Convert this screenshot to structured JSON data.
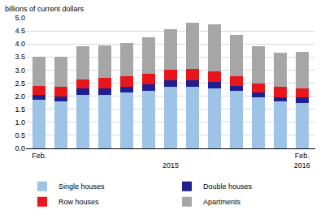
{
  "chart_data": {
    "type": "bar",
    "stacked": true,
    "grid": true,
    "legend": "bottom",
    "ylabel": "billions of current dollars",
    "categories": [
      "Feb.",
      null,
      null,
      null,
      null,
      null,
      "\n2015",
      null,
      null,
      null,
      null,
      null,
      "Feb.\n2016"
    ],
    "series": [
      {
        "name": "Single houses",
        "color": "#9dc3e6",
        "values": [
          1.85,
          1.8,
          2.05,
          2.05,
          2.15,
          2.2,
          2.35,
          2.35,
          2.3,
          2.2,
          1.95,
          1.8,
          1.75
        ]
      },
      {
        "name": "Double houses",
        "color": "#1f1f8f",
        "values": [
          0.2,
          0.2,
          0.25,
          0.25,
          0.2,
          0.25,
          0.25,
          0.25,
          0.25,
          0.2,
          0.2,
          0.15,
          0.2
        ]
      },
      {
        "name": "Row houses",
        "color": "#e8161b",
        "values": [
          0.35,
          0.35,
          0.35,
          0.4,
          0.4,
          0.4,
          0.4,
          0.45,
          0.4,
          0.35,
          0.35,
          0.4,
          0.35
        ]
      },
      {
        "name": "Apartments",
        "color": "#a6a6a6",
        "values": [
          1.1,
          1.15,
          1.25,
          1.25,
          1.3,
          1.4,
          1.55,
          1.75,
          1.8,
          1.6,
          1.4,
          1.3,
          1.4
        ]
      }
    ],
    "ylim": [
      0,
      5
    ],
    "yticks": [
      {
        "value": 0,
        "label": "0.0"
      },
      {
        "value": 0.5,
        "label": "0.5"
      },
      {
        "value": 1,
        "label": "1.0"
      },
      {
        "value": 1.5,
        "label": "1.5"
      },
      {
        "value": 2,
        "label": "2.0"
      },
      {
        "value": 2.5,
        "label": "2.5"
      },
      {
        "value": 3,
        "label": "3.0"
      },
      {
        "value": 3.5,
        "label": "3.5"
      },
      {
        "value": 4,
        "label": "4.0"
      },
      {
        "value": 4.5,
        "label": "4.5"
      },
      {
        "value": 5,
        "label": "5.0"
      }
    ]
  }
}
